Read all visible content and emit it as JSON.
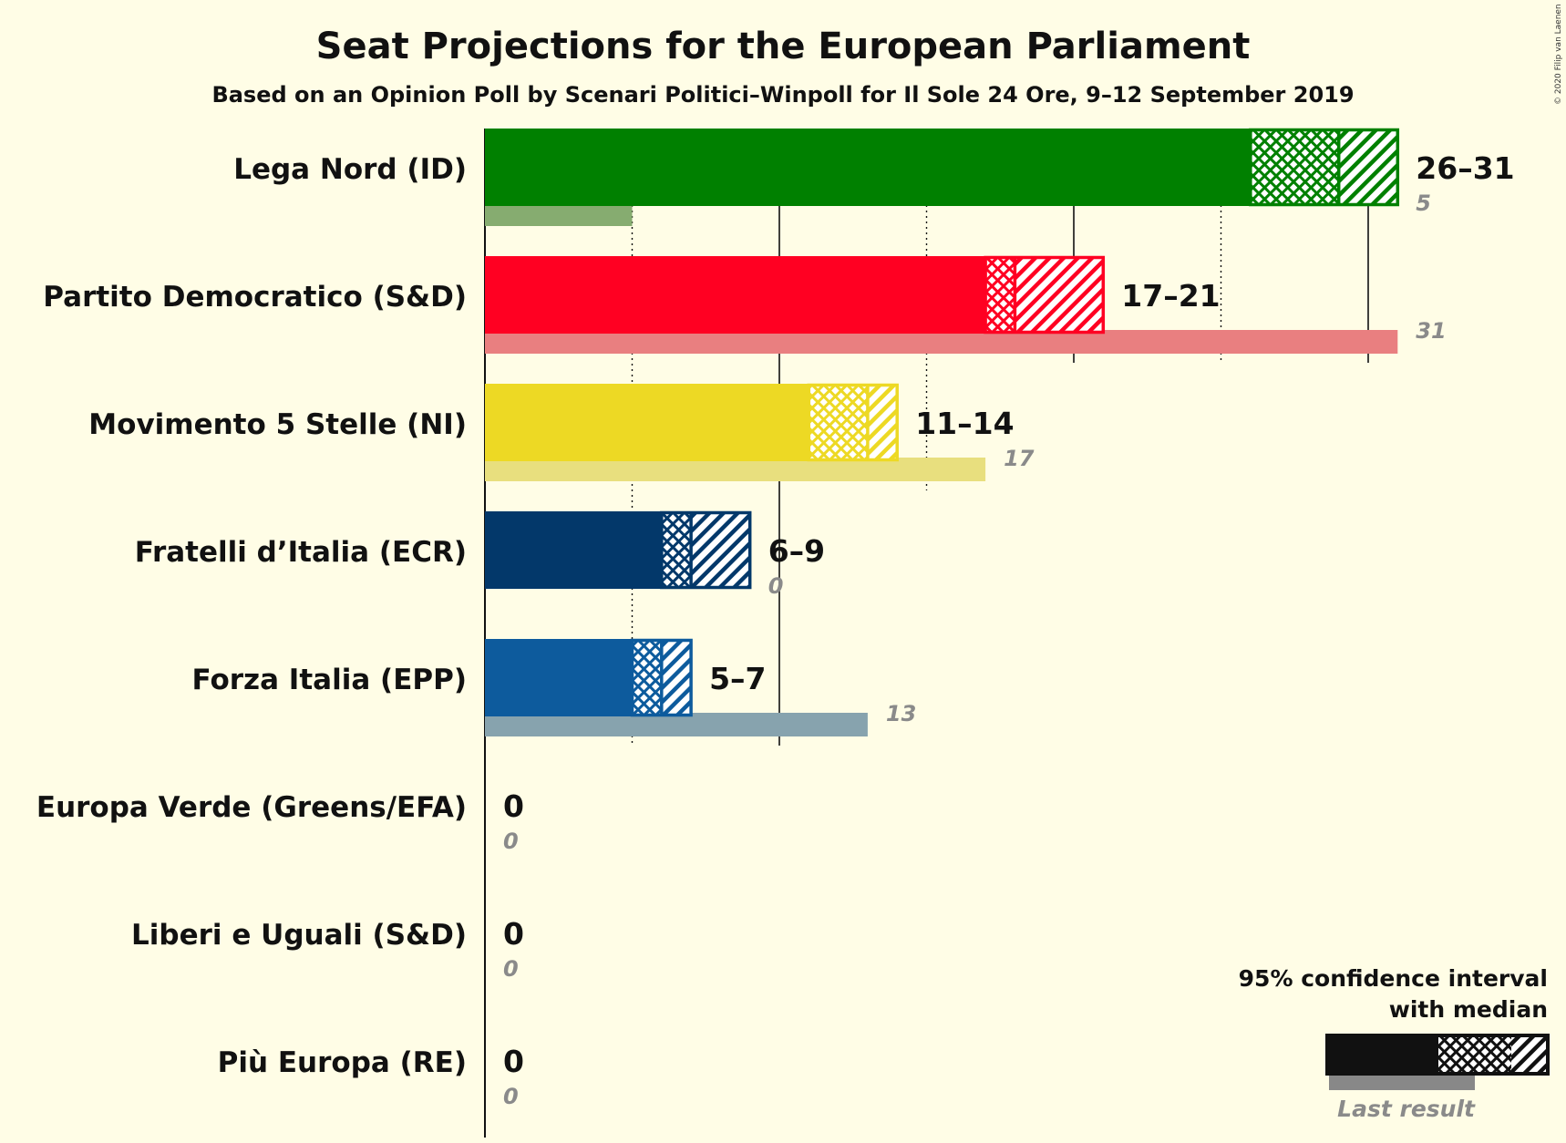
{
  "chart_data": {
    "type": "bar",
    "title": "Seat Projections for the European Parliament",
    "subtitle": "Based on an Opinion Poll by Scenari Politici–Winpoll for Il Sole 24 Ore, 9–12 September 2019",
    "copyright": "© 2020 Filip van Laenen",
    "xlim": [
      0,
      31
    ],
    "gridlines": [
      0,
      5,
      10,
      15,
      20,
      25,
      30
    ],
    "parties": [
      {
        "name": "Lega Nord (ID)",
        "color": "#008000",
        "last_color": "#86AC70",
        "low": 26,
        "median": 29,
        "high": 31,
        "range_label": "26–31",
        "last_result": 5,
        "last_label": "5"
      },
      {
        "name": "Partito Democratico (S&D)",
        "color": "#FF0022",
        "last_color": "#E97F80",
        "low": 17,
        "median": 18,
        "high": 21,
        "range_label": "17–21",
        "last_result": 31,
        "last_label": "31"
      },
      {
        "name": "Movimento 5 Stelle (NI)",
        "color": "#EDD924",
        "last_color": "#E8DF7E",
        "low": 11,
        "median": 13,
        "high": 14,
        "range_label": "11–14",
        "last_result": 17,
        "last_label": "17"
      },
      {
        "name": "Fratelli d’Italia (ECR)",
        "color": "#03386A",
        "last_color": "#9AA8B5",
        "low": 6,
        "median": 7,
        "high": 9,
        "range_label": "6–9",
        "last_result": 0,
        "last_label": "0"
      },
      {
        "name": "Forza Italia (EPP)",
        "color": "#0D5B9D",
        "last_color": "#87A3AE",
        "low": 5,
        "median": 6,
        "high": 7,
        "range_label": "5–7",
        "last_result": 13,
        "last_label": "13"
      },
      {
        "name": "Europa Verde (Greens/EFA)",
        "color": "#3A8A3A",
        "last_color": "#999999",
        "low": 0,
        "median": 0,
        "high": 0,
        "range_label": "0",
        "last_result": 0,
        "last_label": "0"
      },
      {
        "name": "Liberi e Uguali (S&D)",
        "color": "#C8102E",
        "last_color": "#999999",
        "low": 0,
        "median": 0,
        "high": 0,
        "range_label": "0",
        "last_result": 0,
        "last_label": "0"
      },
      {
        "name": "Più Europa (RE)",
        "color": "#FFD700",
        "last_color": "#999999",
        "low": 0,
        "median": 0,
        "high": 0,
        "range_label": "0",
        "last_result": 0,
        "last_label": "0"
      }
    ],
    "legend": {
      "line1": "95% confidence interval",
      "line2": "with median",
      "last_result": "Last result",
      "placement": "bottom-right"
    }
  }
}
